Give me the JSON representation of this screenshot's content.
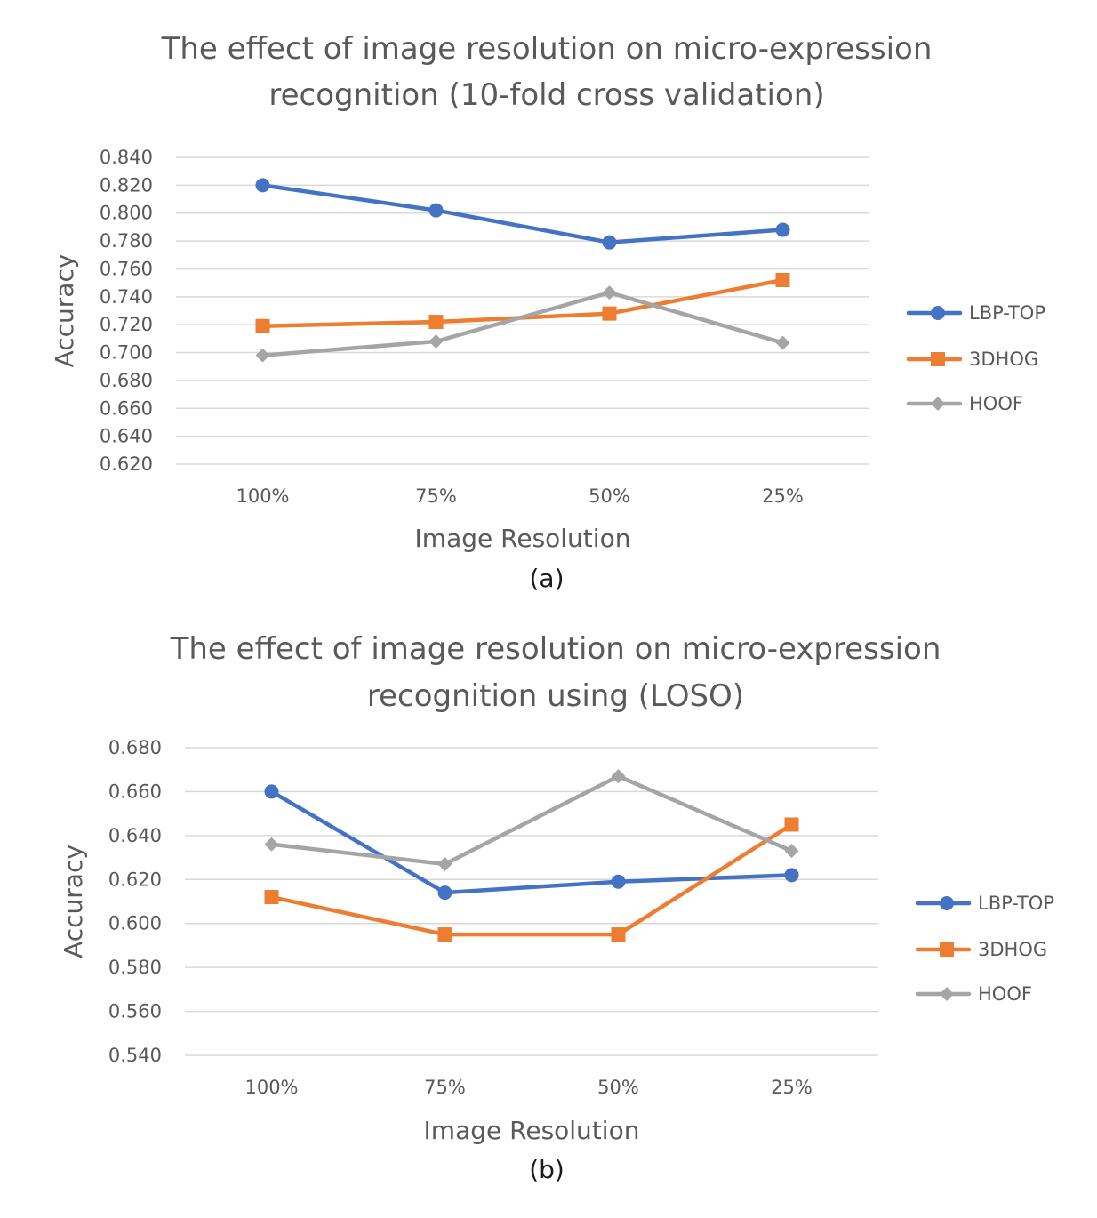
{
  "chart_data": [
    {
      "type": "line",
      "caption": "(a)",
      "title_lines": [
        "The effect of image resolution on micro-expression",
        "recognition (10-fold cross validation)"
      ],
      "xlabel": "Image Resolution",
      "ylabel": "Accuracy",
      "categories": [
        "100%",
        "75%",
        "50%",
        "25%"
      ],
      "ylim": [
        0.62,
        0.84
      ],
      "ystep": 0.02,
      "ytick_labels": [
        "0.620",
        "0.640",
        "0.660",
        "0.680",
        "0.700",
        "0.720",
        "0.740",
        "0.760",
        "0.780",
        "0.800",
        "0.820",
        "0.840"
      ],
      "grid": true,
      "legend_position": "right",
      "series": [
        {
          "name": "LBP-TOP",
          "color": "#4472c4",
          "marker": "circle",
          "values": [
            0.82,
            0.802,
            0.779,
            0.788
          ]
        },
        {
          "name": "3DHOG",
          "color": "#ed7d31",
          "marker": "square",
          "values": [
            0.719,
            0.722,
            0.728,
            0.752
          ]
        },
        {
          "name": "HOOF",
          "color": "#a5a5a5",
          "marker": "diamond",
          "values": [
            0.698,
            0.708,
            0.743,
            0.707
          ]
        }
      ]
    },
    {
      "type": "line",
      "caption": "(b)",
      "title_lines": [
        "The effect of image resolution on micro-expression",
        "recognition using (LOSO)"
      ],
      "xlabel": "Image Resolution",
      "ylabel": "Accuracy",
      "categories": [
        "100%",
        "75%",
        "50%",
        "25%"
      ],
      "ylim": [
        0.54,
        0.68
      ],
      "ystep": 0.02,
      "ytick_labels": [
        "0.540",
        "0.560",
        "0.580",
        "0.600",
        "0.620",
        "0.640",
        "0.660",
        "0.680"
      ],
      "grid": true,
      "legend_position": "right",
      "series": [
        {
          "name": "LBP-TOP",
          "color": "#4472c4",
          "marker": "circle",
          "values": [
            0.66,
            0.614,
            0.619,
            0.622
          ]
        },
        {
          "name": "3DHOG",
          "color": "#ed7d31",
          "marker": "square",
          "values": [
            0.612,
            0.595,
            0.595,
            0.645
          ]
        },
        {
          "name": "HOOF",
          "color": "#a5a5a5",
          "marker": "diamond",
          "values": [
            0.636,
            0.627,
            0.667,
            0.633
          ]
        }
      ]
    }
  ]
}
